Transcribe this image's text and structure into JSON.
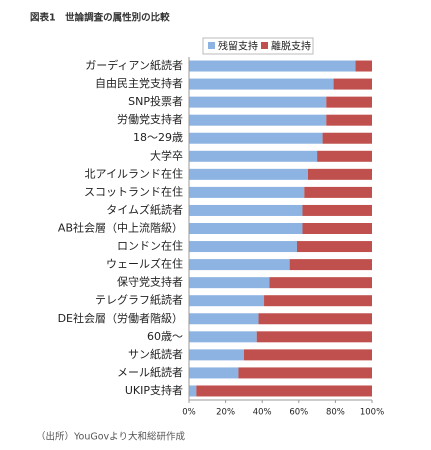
{
  "chart_data": {
    "type": "stacked_barh",
    "title": "図表1　世論調査の属性別の比較",
    "categories": [
      "ガーディアン紙読者",
      "自由民主党支持者",
      "SNP投票者",
      "労働党支持者",
      "18～29歳",
      "大学卒",
      "北アイルランド在住",
      "スコットランド在住",
      "タイムズ紙読者",
      "AB社会層（中上流階級）",
      "ロンドン在住",
      "ウェールズ在住",
      "保守党支持者",
      "テレグラフ紙読者",
      "DE社会層（労働者階級）",
      "60歳～",
      "サン紙読者",
      "メール紙読者",
      "UKIP支持者"
    ],
    "series": [
      {
        "name": "残留支持",
        "color": "#8db3e2",
        "values": [
          91,
          79,
          75,
          75,
          73,
          70,
          65,
          63,
          62,
          62,
          59,
          55,
          44,
          41,
          38,
          37,
          30,
          27,
          4
        ]
      },
      {
        "name": "離脱支持",
        "color": "#c0504d",
        "values": [
          9,
          21,
          25,
          25,
          27,
          30,
          35,
          37,
          38,
          38,
          41,
          45,
          56,
          59,
          62,
          63,
          70,
          73,
          96
        ]
      }
    ],
    "xlim": [
      0,
      100
    ],
    "xticks": [
      {
        "value": 0,
        "label": "0%"
      },
      {
        "value": 20,
        "label": "20%"
      },
      {
        "value": 40,
        "label": "40%"
      },
      {
        "value": 60,
        "label": "60%"
      },
      {
        "value": 80,
        "label": "80%"
      },
      {
        "value": 100,
        "label": "100%"
      }
    ],
    "legend": "top-right",
    "note": "（出所）YouGovより大和総研作成"
  }
}
